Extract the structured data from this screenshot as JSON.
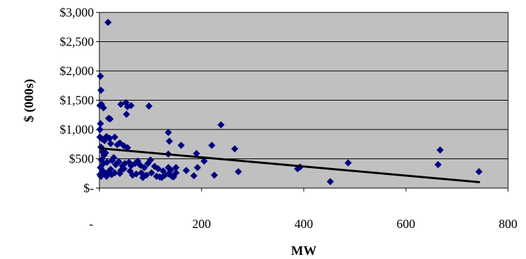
{
  "chart_data": {
    "type": "scatter",
    "title": "",
    "xlabel": "MW",
    "ylabel": "$ (000s)",
    "xlim": [
      0,
      800
    ],
    "ylim": [
      0,
      3000
    ],
    "x_ticks": [
      {
        "value": 0,
        "label": "-"
      },
      {
        "value": 200,
        "label": "200"
      },
      {
        "value": 400,
        "label": "400"
      },
      {
        "value": 600,
        "label": "600"
      },
      {
        "value": 800,
        "label": "800"
      }
    ],
    "y_ticks": [
      {
        "value": 0,
        "label": "$-"
      },
      {
        "value": 500,
        "label": "$500"
      },
      {
        "value": 1000,
        "label": "$1,000"
      },
      {
        "value": 1500,
        "label": "$1,500"
      },
      {
        "value": 2000,
        "label": "$2,000"
      },
      {
        "value": 2500,
        "label": "$2,500"
      },
      {
        "value": 3000,
        "label": "$3,000"
      }
    ],
    "grid": "horizontal",
    "plot_background": "#c0c0c0",
    "marker_color": "#000080",
    "trendline": {
      "x": [
        0,
        745
      ],
      "y": [
        680,
        100
      ]
    },
    "points": [
      [
        17,
        2830
      ],
      [
        2,
        1910
      ],
      [
        3,
        1670
      ],
      [
        1,
        1410
      ],
      [
        4,
        1430
      ],
      [
        8,
        1370
      ],
      [
        42,
        1430
      ],
      [
        52,
        1460
      ],
      [
        55,
        1390
      ],
      [
        62,
        1410
      ],
      [
        97,
        1400
      ],
      [
        53,
        1260
      ],
      [
        18,
        1190
      ],
      [
        21,
        1180
      ],
      [
        2,
        1100
      ],
      [
        1,
        1000
      ],
      [
        1,
        870
      ],
      [
        5,
        840
      ],
      [
        10,
        810
      ],
      [
        14,
        880
      ],
      [
        20,
        850
      ],
      [
        30,
        870
      ],
      [
        22,
        760
      ],
      [
        35,
        740
      ],
      [
        40,
        770
      ],
      [
        48,
        720
      ],
      [
        55,
        690
      ],
      [
        135,
        950
      ],
      [
        137,
        800
      ],
      [
        160,
        730
      ],
      [
        238,
        1080
      ],
      [
        220,
        730
      ],
      [
        265,
        670
      ],
      [
        190,
        590
      ],
      [
        135,
        580
      ],
      [
        3,
        700
      ],
      [
        6,
        620
      ],
      [
        9,
        560
      ],
      [
        12,
        600
      ],
      [
        4,
        480
      ],
      [
        8,
        420
      ],
      [
        15,
        440
      ],
      [
        25,
        470
      ],
      [
        28,
        520
      ],
      [
        32,
        400
      ],
      [
        38,
        450
      ],
      [
        45,
        380
      ],
      [
        50,
        420
      ],
      [
        58,
        440
      ],
      [
        62,
        380
      ],
      [
        70,
        420
      ],
      [
        75,
        460
      ],
      [
        80,
        390
      ],
      [
        88,
        350
      ],
      [
        95,
        420
      ],
      [
        100,
        480
      ],
      [
        108,
        370
      ],
      [
        115,
        330
      ],
      [
        125,
        290
      ],
      [
        135,
        350
      ],
      [
        140,
        310
      ],
      [
        150,
        350
      ],
      [
        170,
        300
      ],
      [
        192,
        350
      ],
      [
        205,
        460
      ],
      [
        2,
        350
      ],
      [
        6,
        300
      ],
      [
        11,
        250
      ],
      [
        18,
        280
      ],
      [
        22,
        320
      ],
      [
        30,
        260
      ],
      [
        42,
        300
      ],
      [
        48,
        330
      ],
      [
        60,
        290
      ],
      [
        72,
        240
      ],
      [
        82,
        260
      ],
      [
        92,
        220
      ],
      [
        102,
        260
      ],
      [
        112,
        200
      ],
      [
        118,
        190
      ],
      [
        128,
        220
      ],
      [
        135,
        240
      ],
      [
        142,
        200
      ],
      [
        150,
        260
      ],
      [
        1,
        230
      ],
      [
        3,
        200
      ],
      [
        7,
        280
      ],
      [
        14,
        200
      ],
      [
        24,
        230
      ],
      [
        40,
        250
      ],
      [
        65,
        220
      ],
      [
        85,
        180
      ],
      [
        122,
        180
      ],
      [
        145,
        190
      ],
      [
        185,
        210
      ],
      [
        225,
        220
      ],
      [
        272,
        280
      ],
      [
        388,
        330
      ],
      [
        393,
        360
      ],
      [
        487,
        430
      ],
      [
        452,
        110
      ],
      [
        663,
        400
      ],
      [
        667,
        650
      ],
      [
        743,
        280
      ]
    ]
  }
}
